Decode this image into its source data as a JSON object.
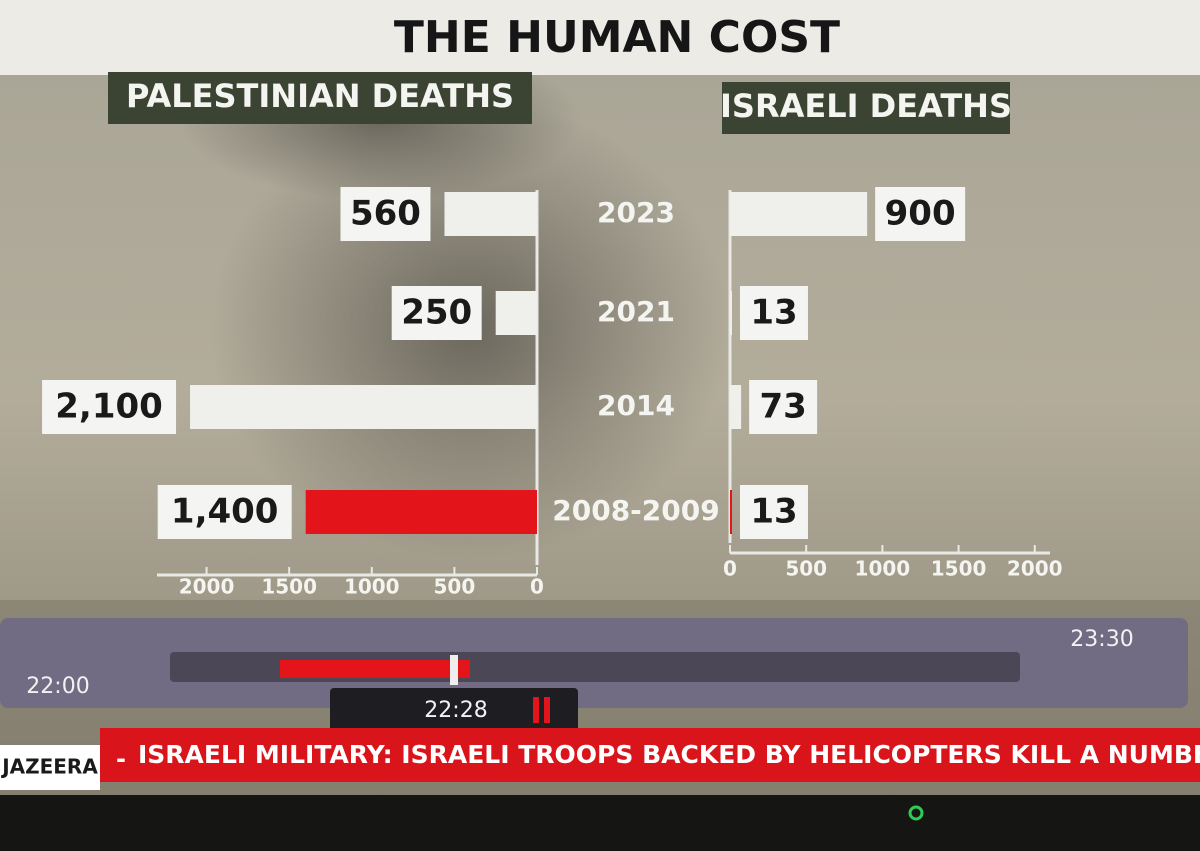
{
  "title": "THE HUMAN COST",
  "chart_data": [
    {
      "type": "bar",
      "orientation": "horizontal",
      "reversed": true,
      "title": "PALESTINIAN DEATHS",
      "categories": [
        "2023",
        "2021",
        "2014",
        "2008-2009"
      ],
      "values": [
        560,
        250,
        2100,
        1400
      ],
      "value_labels": [
        "560",
        "250",
        "2,100",
        "1,400"
      ],
      "colors": [
        "#efefec",
        "#efefec",
        "#efefec",
        "#e3151b"
      ],
      "xlim": [
        0,
        2300
      ],
      "xticks": [
        0,
        500,
        1000,
        1500,
        2000
      ]
    },
    {
      "type": "bar",
      "orientation": "horizontal",
      "reversed": false,
      "title": "ISRAELI DEATHS",
      "categories": [
        "2023",
        "2021",
        "2014",
        "2008-2009"
      ],
      "values": [
        900,
        13,
        73,
        13
      ],
      "colors": [
        "#efefec",
        "#efefec",
        "#efefec",
        "#e3151b"
      ],
      "xlim": [
        0,
        2100
      ],
      "xticks": [
        0,
        500,
        1000,
        1500,
        2000
      ]
    }
  ],
  "player": {
    "start": "22:00",
    "end": "23:30",
    "current": "22:28"
  },
  "ticker": {
    "channel": "JAZEERA",
    "separator": "-",
    "text": "ISRAELI MILITARY: ISRAELI TROOPS BACKED BY HELICOPTERS KILL A NUMBER OF FIGHTERS FRO"
  }
}
